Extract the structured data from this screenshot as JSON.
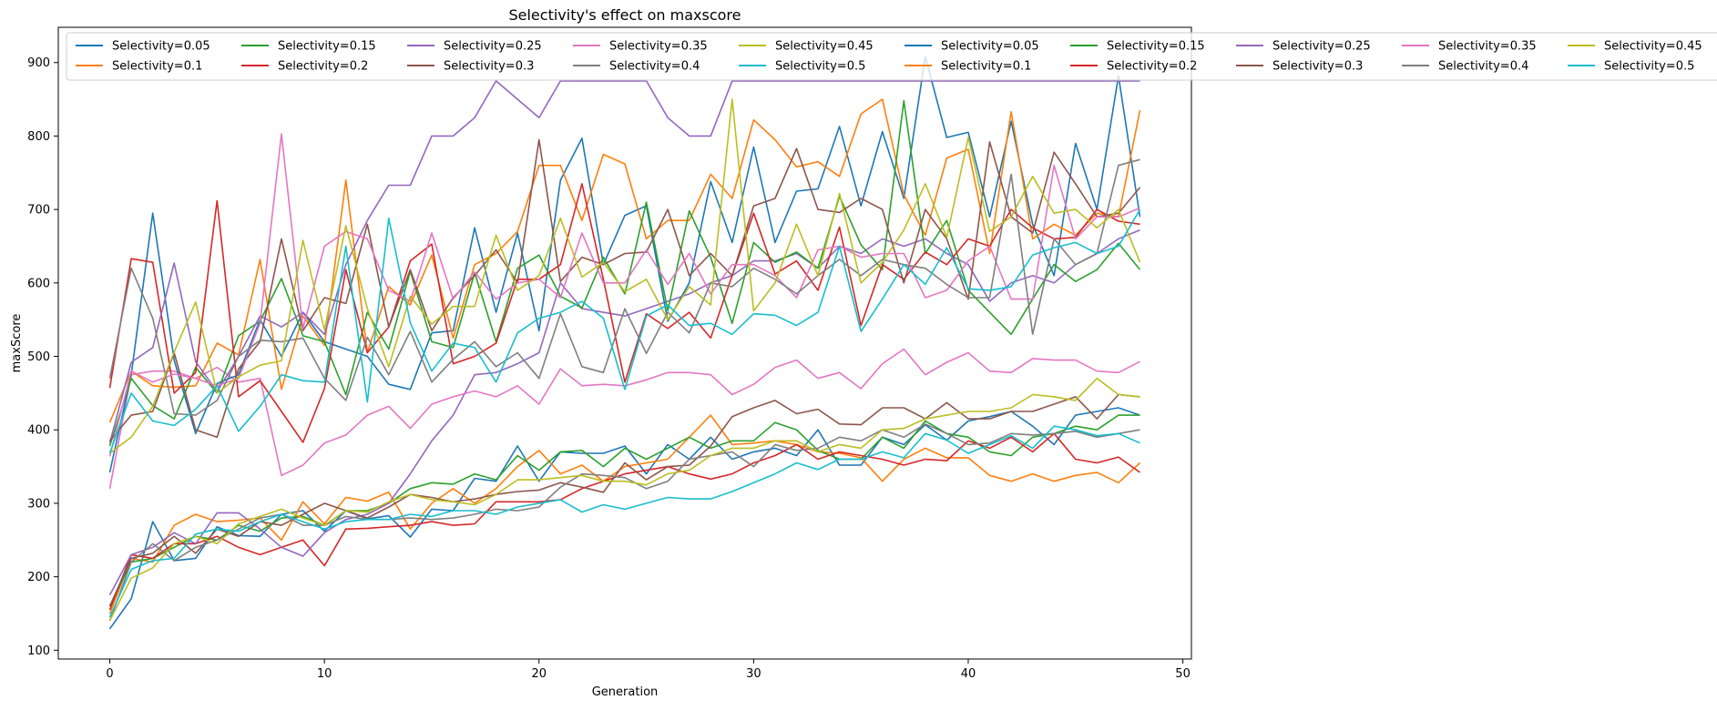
{
  "chart_data": {
    "type": "line",
    "title": "Selectivity's effect on maxscore",
    "xlabel": "Generation",
    "ylabel": "maxScore",
    "xlim": [
      -2.4,
      50.4
    ],
    "ylim": [
      88,
      948
    ],
    "xticks": [
      0,
      10,
      20,
      30,
      40,
      50
    ],
    "yticks": [
      100,
      200,
      300,
      400,
      500,
      600,
      700,
      800,
      900
    ],
    "grid": false,
    "legend_position": "top",
    "legend_columns": 10,
    "x": [
      0,
      1,
      2,
      3,
      4,
      5,
      6,
      7,
      8,
      9,
      10,
      11,
      12,
      13,
      14,
      15,
      16,
      17,
      18,
      19,
      20,
      21,
      22,
      23,
      24,
      25,
      26,
      27,
      28,
      29,
      30,
      31,
      32,
      33,
      34,
      35,
      36,
      37,
      38,
      39,
      40,
      41,
      42,
      43,
      44,
      45,
      46,
      47,
      48
    ],
    "series": [
      {
        "name": "Selectivity=0.05",
        "color": "#1f77b4",
        "values": [
          129,
          170,
          275,
          222,
          225,
          268,
          256,
          255,
          285,
          290,
          262,
          290,
          279,
          283,
          254,
          292,
          290,
          334,
          330,
          378,
          330,
          370,
          368,
          368,
          378,
          340,
          380,
          360,
          390,
          360,
          370,
          375,
          365,
          400,
          352,
          352,
          390,
          380,
          407,
          386,
          412,
          418,
          425,
          405,
          380,
          420,
          425,
          430,
          420
        ]
      },
      {
        "name": "Selectivity=0.1",
        "color": "#ff7f0e",
        "values": [
          150,
          225,
          220,
          270,
          285,
          275,
          277,
          280,
          250,
          302,
          272,
          308,
          303,
          315,
          265,
          300,
          320,
          300,
          320,
          350,
          372,
          340,
          352,
          330,
          350,
          355,
          360,
          390,
          420,
          380,
          382,
          385,
          380,
          370,
          368,
          362,
          330,
          360,
          375,
          362,
          362,
          338,
          330,
          340,
          330,
          338,
          342,
          328,
          355
        ]
      },
      {
        "name": "Selectivity=0.15",
        "color": "#2ca02c",
        "values": [
          160,
          220,
          225,
          240,
          255,
          250,
          270,
          262,
          280,
          282,
          270,
          290,
          290,
          300,
          320,
          328,
          326,
          340,
          332,
          365,
          345,
          370,
          372,
          350,
          375,
          360,
          375,
          390,
          375,
          385,
          385,
          410,
          400,
          372,
          360,
          360,
          390,
          375,
          412,
          395,
          390,
          370,
          365,
          390,
          395,
          405,
          400,
          420,
          420
        ]
      },
      {
        "name": "Selectivity=0.2",
        "color": "#d62728",
        "values": [
          155,
          230,
          225,
          245,
          245,
          255,
          240,
          230,
          240,
          250,
          215,
          265,
          266,
          268,
          270,
          275,
          270,
          272,
          302,
          302,
          302,
          305,
          320,
          330,
          340,
          345,
          350,
          340,
          333,
          340,
          355,
          365,
          380,
          360,
          370,
          365,
          360,
          352,
          360,
          358,
          385,
          375,
          390,
          370,
          395,
          360,
          355,
          363,
          342
        ]
      },
      {
        "name": "Selectivity=0.25",
        "color": "#9467bd",
        "values": [
          175,
          230,
          240,
          260,
          245,
          287,
          287,
          265,
          240,
          228,
          260,
          278,
          285,
          300,
          340,
          385,
          420,
          475,
          478,
          490,
          505,
          600,
          565,
          560,
          555,
          565,
          575,
          585,
          600,
          610,
          630,
          630,
          640,
          620,
          650,
          640,
          660,
          650,
          660,
          640,
          625,
          575,
          600,
          610,
          600,
          625,
          640,
          660,
          672
        ]
      },
      {
        "name": "Selectivity=0.3",
        "color": "#8c564b",
        "values": [
          160,
          225,
          232,
          255,
          232,
          265,
          255,
          275,
          270,
          285,
          300,
          290,
          280,
          295,
          312,
          308,
          302,
          306,
          312,
          316,
          318,
          328,
          322,
          315,
          355,
          332,
          350,
          352,
          378,
          418,
          430,
          440,
          422,
          428,
          408,
          407,
          430,
          430,
          415,
          437,
          415,
          415,
          425,
          425,
          435,
          445,
          415,
          448,
          445
        ]
      },
      {
        "name": "Selectivity=0.35",
        "color": "#e377c2",
        "values": [
          320,
          475,
          480,
          480,
          470,
          485,
          465,
          470,
          338,
          352,
          382,
          393,
          420,
          432,
          402,
          435,
          445,
          453,
          445,
          460,
          435,
          483,
          460,
          462,
          460,
          468,
          478,
          478,
          475,
          448,
          462,
          485,
          495,
          470,
          478,
          456,
          490,
          510,
          475,
          492,
          505,
          480,
          478,
          497,
          495,
          495,
          480,
          478,
          493
        ]
      },
      {
        "name": "Selectivity=0.4",
        "color": "#7f7f7f",
        "values": [
          140,
          220,
          245,
          222,
          240,
          250,
          265,
          280,
          285,
          270,
          270,
          282,
          278,
          278,
          280,
          278,
          280,
          285,
          292,
          290,
          295,
          322,
          340,
          338,
          335,
          320,
          330,
          360,
          365,
          370,
          350,
          380,
          372,
          375,
          390,
          385,
          400,
          390,
          408,
          395,
          380,
          382,
          395,
          393,
          395,
          398,
          390,
          395,
          400
        ]
      },
      {
        "name": "Selectivity=0.45",
        "color": "#bcbd22",
        "values": [
          140,
          198,
          212,
          245,
          255,
          245,
          272,
          282,
          292,
          280,
          270,
          290,
          288,
          302,
          312,
          305,
          302,
          298,
          312,
          332,
          332,
          335,
          338,
          330,
          330,
          325,
          340,
          345,
          365,
          375,
          375,
          385,
          385,
          370,
          380,
          375,
          400,
          402,
          415,
          420,
          425,
          425,
          430,
          448,
          445,
          440,
          470,
          448,
          445
        ]
      },
      {
        "name": "Selectivity=0.5",
        "color": "#17becf",
        "values": [
          145,
          210,
          222,
          225,
          258,
          265,
          262,
          275,
          285,
          275,
          265,
          275,
          278,
          278,
          285,
          282,
          290,
          290,
          285,
          295,
          300,
          305,
          288,
          298,
          292,
          300,
          308,
          306,
          306,
          316,
          328,
          340,
          355,
          346,
          360,
          360,
          370,
          362,
          395,
          386,
          368,
          380,
          392,
          375,
          405,
          400,
          392,
          395,
          382
        ]
      },
      {
        "name": "Selectivity=0.05",
        "color": "#1f77b4",
        "values": [
          342,
          475,
          695,
          495,
          395,
          463,
          475,
          550,
          500,
          560,
          520,
          510,
          500,
          462,
          455,
          532,
          535,
          675,
          560,
          668,
          535,
          740,
          797,
          625,
          692,
          705,
          548,
          600,
          738,
          655,
          785,
          655,
          725,
          728,
          813,
          705,
          806,
          715,
          908,
          798,
          805,
          690,
          820,
          680,
          610,
          790,
          700,
          882,
          690
        ]
      },
      {
        "name": "Selectivity=0.1",
        "color": "#ff7f0e",
        "values": [
          410,
          480,
          460,
          458,
          460,
          518,
          502,
          632,
          455,
          555,
          515,
          740,
          505,
          595,
          570,
          638,
          525,
          625,
          640,
          670,
          760,
          760,
          685,
          775,
          762,
          660,
          685,
          685,
          748,
          715,
          822,
          795,
          758,
          765,
          745,
          830,
          850,
          720,
          665,
          770,
          782,
          640,
          833,
          660,
          680,
          665,
          695,
          690,
          835
        ]
      },
      {
        "name": "Selectivity=0.15",
        "color": "#2ca02c",
        "values": [
          378,
          470,
          433,
          415,
          485,
          450,
          528,
          548,
          606,
          528,
          520,
          448,
          560,
          510,
          616,
          520,
          512,
          614,
          520,
          620,
          638,
          582,
          566,
          635,
          585,
          710,
          562,
          698,
          635,
          545,
          655,
          628,
          642,
          620,
          718,
          652,
          618,
          848,
          640,
          685,
          590,
          560,
          530,
          578,
          625,
          602,
          618,
          654,
          618
        ]
      },
      {
        "name": "Selectivity=0.2",
        "color": "#d62728",
        "values": [
          457,
          633,
          628,
          450,
          478,
          712,
          445,
          467,
          425,
          383,
          456,
          618,
          505,
          540,
          630,
          653,
          490,
          500,
          518,
          605,
          605,
          625,
          735,
          605,
          465,
          558,
          538,
          560,
          525,
          610,
          695,
          612,
          630,
          590,
          676,
          542,
          625,
          605,
          642,
          625,
          660,
          650,
          700,
          675,
          660,
          662,
          700,
          684,
          680
        ]
      },
      {
        "name": "Selectivity=0.25",
        "color": "#9467bd",
        "values": [
          382,
          492,
          512,
          627,
          493,
          452,
          500,
          555,
          540,
          560,
          530,
          625,
          685,
          733,
          733,
          800,
          800,
          825,
          875,
          850,
          825,
          875,
          875,
          875,
          875,
          875,
          825,
          800,
          800,
          875,
          875,
          875,
          875,
          875,
          875,
          875,
          875,
          875,
          875,
          875,
          875,
          875,
          875,
          875,
          875,
          875,
          875,
          875,
          875
        ]
      },
      {
        "name": "Selectivity=0.3",
        "color": "#8c564b",
        "values": [
          385,
          420,
          425,
          505,
          400,
          390,
          483,
          520,
          660,
          535,
          580,
          572,
          680,
          540,
          618,
          535,
          580,
          610,
          645,
          600,
          795,
          602,
          635,
          625,
          640,
          642,
          700,
          610,
          640,
          610,
          705,
          715,
          783,
          700,
          696,
          715,
          700,
          600,
          700,
          660,
          578,
          792,
          690,
          668,
          778,
          735,
          690,
          695,
          730
        ]
      },
      {
        "name": "Selectivity=0.35",
        "color": "#e377c2",
        "values": [
          364,
          480,
          465,
          476,
          470,
          460,
          470,
          545,
          803,
          538,
          650,
          670,
          660,
          590,
          575,
          668,
          578,
          615,
          578,
          600,
          605,
          580,
          668,
          600,
          600,
          645,
          598,
          640,
          585,
          625,
          625,
          610,
          580,
          645,
          650,
          635,
          640,
          640,
          580,
          590,
          630,
          650,
          578,
          578,
          760,
          660,
          690,
          690,
          702
        ]
      },
      {
        "name": "Selectivity=0.4",
        "color": "#7f7f7f",
        "values": [
          470,
          620,
          552,
          422,
          420,
          440,
          500,
          522,
          520,
          525,
          470,
          440,
          526,
          475,
          534,
          465,
          496,
          520,
          486,
          505,
          470,
          558,
          486,
          478,
          565,
          504,
          560,
          532,
          600,
          595,
          620,
          605,
          585,
          610,
          632,
          610,
          632,
          625,
          620,
          598,
          580,
          580,
          748,
          530,
          660,
          625,
          640,
          760,
          768
        ]
      },
      {
        "name": "Selectivity=0.45",
        "color": "#bcbd22",
        "values": [
          368,
          390,
          432,
          506,
          574,
          450,
          472,
          488,
          494,
          658,
          536,
          678,
          565,
          486,
          582,
          544,
          568,
          568,
          665,
          590,
          610,
          688,
          608,
          628,
          588,
          605,
          550,
          595,
          570,
          850,
          562,
          600,
          680,
          610,
          722,
          600,
          628,
          672,
          735,
          662,
          798,
          670,
          690,
          745,
          695,
          700,
          675,
          700,
          628
        ]
      },
      {
        "name": "Selectivity=0.5",
        "color": "#17becf",
        "values": [
          368,
          450,
          412,
          406,
          428,
          460,
          398,
          432,
          475,
          467,
          465,
          650,
          438,
          688,
          546,
          480,
          518,
          512,
          465,
          532,
          552,
          560,
          575,
          552,
          455,
          555,
          570,
          542,
          545,
          530,
          558,
          556,
          542,
          560,
          650,
          534,
          578,
          625,
          598,
          648,
          592,
          590,
          595,
          638,
          648,
          655,
          640,
          650,
          700
        ]
      }
    ]
  }
}
